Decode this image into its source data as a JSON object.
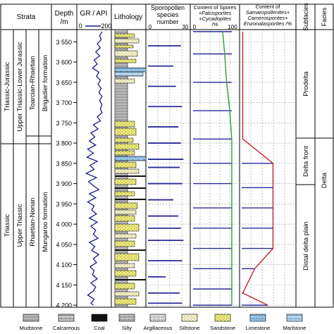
{
  "headers": {
    "strata": "Strata",
    "depth": "Depth",
    "depth_unit": "/m",
    "gr": "GR / API",
    "gr_min": "0",
    "gr_max": "200",
    "lithology": "Lithology",
    "spores_count_line1": "Sporopollen",
    "spores_count_line2": "species",
    "spores_count_line3": "number",
    "spores_count_min": "0",
    "spores_count_max": "30",
    "content_spores_line1": "Content of Spores",
    "content_spores_line2": "+Falcisporites",
    "content_spores_line3": "+Cycadopites",
    "content_spores_line4": "/%",
    "content_spores_min": "0",
    "content_spores_max": "100",
    "content_samaro_line1": "Content of",
    "content_samaro_line2": "Samaropollenites+",
    "content_samaro_line3": "Camerosporites+",
    "content_samaro_line4": "Enzonalasporites /%",
    "subfacies": "Subfacies",
    "facies": "Facies"
  },
  "strata": {
    "system": [
      "Triassic-Jurassic",
      "Triassic"
    ],
    "series": [
      "Upper Triassic-Lower Jurassic",
      "Upper Triassic"
    ],
    "stage": [
      "Toarcian-Rhaetian",
      "Rhaetian-Norian"
    ],
    "formation": [
      "Brigadier formation",
      "Mungaroo formation"
    ]
  },
  "depth_ticks": [
    "3 550",
    "3 600",
    "3 650",
    "3 700",
    "3 750",
    "3 800",
    "3 850",
    "3 900",
    "3 950",
    "4 000",
    "4 050",
    "4 100",
    "4 150",
    "4 200"
  ],
  "subfacies": [
    "Prodelta",
    "Delta front",
    "Distal delta plain"
  ],
  "facies": [
    "Delta"
  ],
  "legend": [
    {
      "label": "Mudstone",
      "pattern": "mudstone"
    },
    {
      "label": "Calcareous",
      "pattern": "calcareous"
    },
    {
      "label": "Coal",
      "pattern": "coal"
    },
    {
      "label": "Silty",
      "pattern": "silty"
    },
    {
      "label": "Argillaceous",
      "pattern": "argillaceous"
    },
    {
      "label": "Siltstone",
      "pattern": "siltstone"
    },
    {
      "label": "Sandstone",
      "pattern": "sandstone"
    },
    {
      "label": "Limestone",
      "pattern": "limestone"
    },
    {
      "label": "Marlstone",
      "pattern": "marlstone"
    }
  ],
  "colors": {
    "gr_curve": "#1a1a8c",
    "count_bars": "#2a2a9a",
    "spores_curve": "#2e9e3a",
    "samaro_curve": "#c0282c",
    "sandstone": "#f0ef7a",
    "siltstone": "#f7f3c8",
    "limestone": "#9cc7e8",
    "mudstone": "#b8b8b8"
  },
  "chart_data": {
    "depth_axis": {
      "unit": "m",
      "range": [
        3520,
        4205
      ]
    },
    "gr": {
      "range": [
        0,
        200
      ],
      "depths": [
        3525,
        3535,
        3545,
        3555,
        3565,
        3575,
        3585,
        3595,
        3605,
        3615,
        3625,
        3635,
        3645,
        3655,
        3665,
        3675,
        3685,
        3695,
        3705,
        3715,
        3725,
        3735,
        3745,
        3755,
        3765,
        3775,
        3785,
        3795,
        3805,
        3815,
        3825,
        3835,
        3845,
        3855,
        3865,
        3875,
        3885,
        3895,
        3905,
        3915,
        3925,
        3935,
        3945,
        3955,
        3965,
        3975,
        3985,
        3995,
        4005,
        4015,
        4025,
        4035,
        4045,
        4055,
        4065,
        4075,
        4085,
        4095,
        4105,
        4115,
        4125,
        4135,
        4145,
        4155,
        4165,
        4175,
        4185,
        4195,
        4200
      ],
      "values": [
        150,
        135,
        145,
        120,
        140,
        110,
        135,
        100,
        120,
        90,
        130,
        115,
        140,
        125,
        145,
        130,
        150,
        135,
        150,
        140,
        150,
        120,
        140,
        95,
        125,
        80,
        105,
        70,
        110,
        60,
        95,
        55,
        120,
        75,
        100,
        50,
        115,
        65,
        95,
        130,
        70,
        110,
        60,
        100,
        85,
        115,
        70,
        120,
        80,
        110,
        95,
        125,
        70,
        105,
        85,
        130,
        95,
        115,
        75,
        100,
        90,
        120,
        80,
        110,
        95,
        60,
        100,
        80,
        95
      ]
    },
    "sporopollen_species_number": {
      "range": [
        0,
        30
      ],
      "depths": [
        3560,
        3610,
        3660,
        3710,
        3760,
        3800,
        3840,
        3860,
        3900,
        3940,
        3980,
        4010,
        4040,
        4090,
        4130,
        4170,
        4195
      ],
      "values": [
        26,
        20,
        22,
        27,
        24,
        26,
        28,
        25,
        27,
        20,
        24,
        26,
        28,
        27,
        14,
        25,
        27
      ]
    },
    "content_spores": {
      "range": [
        0,
        100
      ],
      "depths": [
        3525,
        3580,
        3650,
        3720,
        3790,
        3850,
        3900,
        3960,
        4010,
        4060,
        4110,
        4160,
        4200
      ],
      "values": [
        75,
        80,
        85,
        93,
        98,
        98,
        98,
        98,
        98,
        98,
        98,
        98,
        98
      ]
    },
    "content_samaro": {
      "range": [
        0,
        100
      ],
      "depths": [
        3525,
        3790,
        3850,
        3910,
        3960,
        4010,
        4060,
        4110,
        4170,
        4200
      ],
      "values": [
        2,
        2,
        60,
        60,
        60,
        60,
        60,
        25,
        2,
        50
      ]
    }
  }
}
